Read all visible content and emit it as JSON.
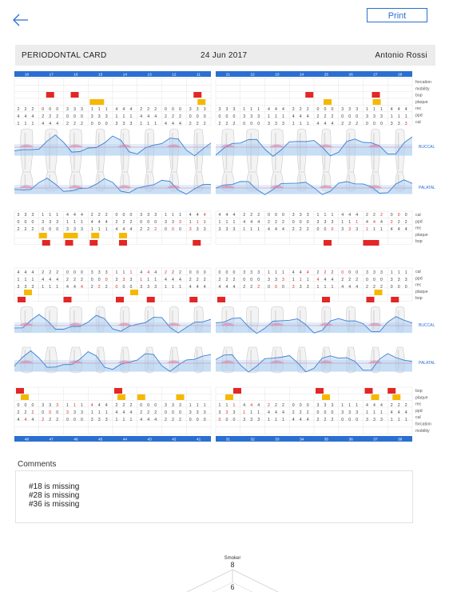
{
  "toolbar": {
    "print_label": "Print",
    "back_icon": "back-arrow-icon"
  },
  "header": {
    "title": "PERIODONTAL CARD",
    "date": "24 Jun 2017",
    "patient": "Antonio Rossi"
  },
  "upper": {
    "teeth_right": [
      "18",
      "17",
      "16",
      "15",
      "14",
      "13",
      "12",
      "11"
    ],
    "teeth_left": [
      "21",
      "22",
      "23",
      "24",
      "25",
      "26",
      "27",
      "28"
    ],
    "row_labels_top": [
      "forcation",
      "mobility",
      "bop",
      "plaque",
      "rec",
      "ppd",
      "cal"
    ],
    "row_labels_bottom": [
      "cal",
      "ppd",
      "rec",
      "plaque",
      "bop"
    ],
    "surface_labels": [
      "BUCCAL",
      "PALATAL"
    ]
  },
  "lower": {
    "teeth_right": [
      "48",
      "47",
      "46",
      "45",
      "44",
      "43",
      "42",
      "41"
    ],
    "teeth_left": [
      "31",
      "32",
      "33",
      "34",
      "35",
      "36",
      "37",
      "38"
    ],
    "row_labels_top": [
      "cal",
      "ppd",
      "rec",
      "plaque",
      "bop"
    ],
    "row_labels_bottom": [
      "bop",
      "plaque",
      "rec",
      "ppd",
      "cal",
      "forcation",
      "mobility"
    ],
    "surface_labels": [
      "BUCCAL",
      "PALATAL"
    ]
  },
  "comments": {
    "label": "Comments",
    "lines": [
      "#18 is missing",
      "#28 is missing",
      "#36 is missing"
    ]
  },
  "radar": {
    "label": "Smoker",
    "top_value": "8",
    "bottom_value": "6"
  },
  "colors": {
    "accent": "#2a6fd1",
    "bop": "#e32626",
    "plaque": "#f5b800",
    "curve": "#3b7fd4",
    "fill": "#a9cdf0",
    "pink": "#e07aa0"
  }
}
